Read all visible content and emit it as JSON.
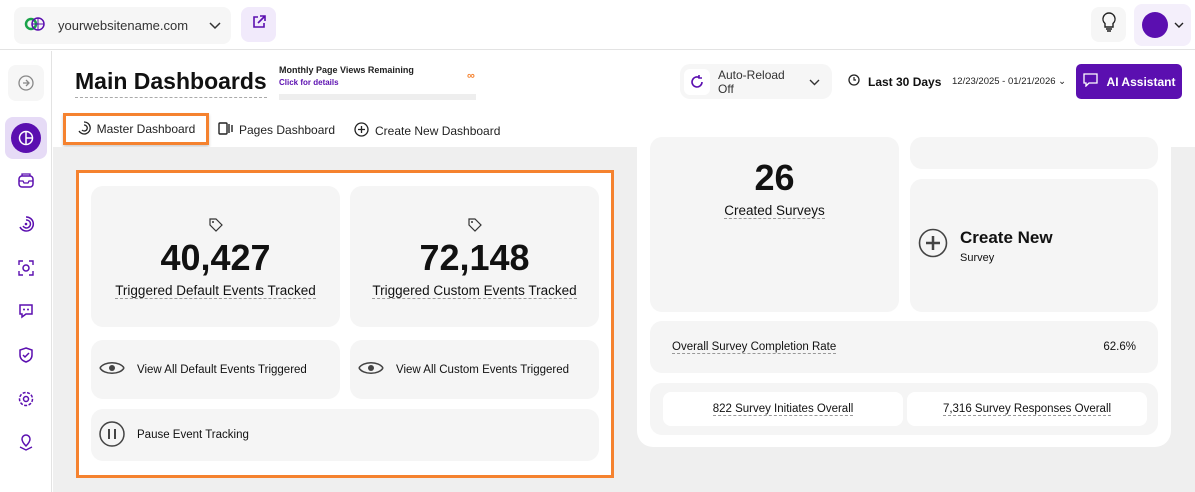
{
  "topbar": {
    "site": "yourwebsitename.com",
    "icons": [
      "globe-icon",
      "external-link-icon",
      "lightbulb-icon",
      "avatar"
    ]
  },
  "header": {
    "title": "Main Dashboards",
    "pageviews_label": "Monthly Page Views Remaining",
    "pageviews_link": "Click for details",
    "pageviews_value": "∞",
    "auto_reload": "Auto-Reload Off",
    "range": "Last 30 Days",
    "dates": "12/23/2025 - 01/21/2026",
    "ai": "AI Assistant"
  },
  "tabs": [
    {
      "label": "Master Dashboard",
      "active": true
    },
    {
      "label": "Pages Dashboard"
    },
    {
      "label": "Create New Dashboard"
    }
  ],
  "events": {
    "default_count": "40,427",
    "default_label": "Triggered Default Events Tracked",
    "custom_count": "72,148",
    "custom_label": "Triggered Custom Events Tracked",
    "view_default": "View All Default Events Triggered",
    "view_custom": "View All Custom Events Triggered",
    "pause": "Pause Event Tracking"
  },
  "surveys": {
    "created_count": "26",
    "created_label": "Created Surveys",
    "create_new": "Create New",
    "create_sub": "Survey",
    "completion_label": "Overall Survey Completion Rate",
    "completion_value": "62.6%",
    "initiates": "822 Survey Initiates Overall",
    "responses": "7,316 Survey Responses Overall"
  },
  "colors": {
    "accent": "#5b0fb0",
    "highlight": "#f5822f"
  }
}
